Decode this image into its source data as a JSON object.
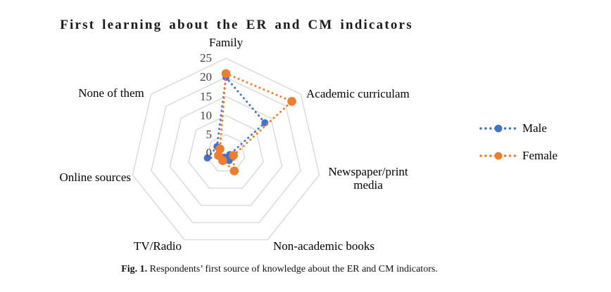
{
  "title": "First learning about the ER and CM indicators",
  "caption": {
    "prefix": "Fig. 1.",
    "text": " Respondents’ first source of knowledge about the ER and CM indicators."
  },
  "colors": {
    "male": "#4472C4",
    "female": "#ED7D31",
    "grid": "#D9D9D9",
    "tick_text": "#3f3f3f"
  },
  "chart_data": {
    "type": "radar",
    "title": "First learning about the ER and CM indicators",
    "categories": [
      "Family",
      "Academic curriculam",
      "Newspaper/print media",
      "Non-academic books",
      "TV/Radio",
      "Online sources",
      "None of them"
    ],
    "series": [
      {
        "name": "Male",
        "color": "#4472C4",
        "values": [
          20,
          13,
          1,
          2,
          1,
          5,
          3
        ]
      },
      {
        "name": "Female",
        "color": "#ED7D31",
        "values": [
          21,
          22,
          2,
          5,
          2,
          2,
          2
        ]
      }
    ],
    "radial_ticks": [
      0,
      5,
      10,
      15,
      20,
      25
    ],
    "rmax": 25,
    "grid": true,
    "line_style": "dotted-round",
    "legend_position": "right"
  }
}
